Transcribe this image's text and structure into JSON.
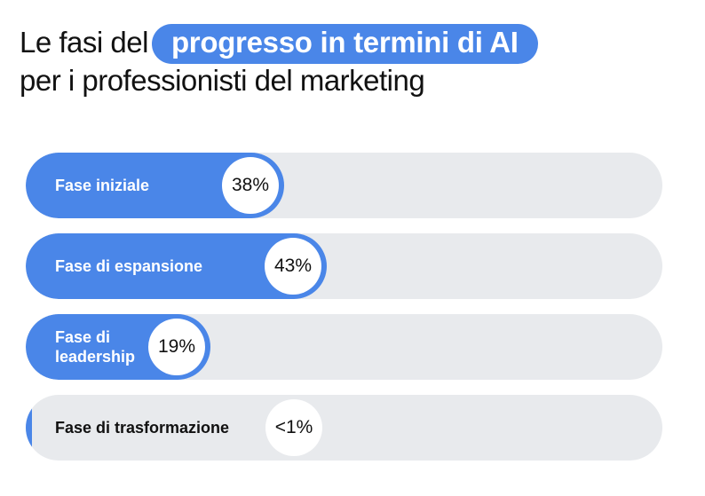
{
  "title": {
    "prefix": "Le fasi del",
    "highlight": "progresso in termini di AI",
    "line2": "per i professionisti del marketing"
  },
  "colors": {
    "accent": "#4a86e8",
    "track": "#e8eaed"
  },
  "chart_data": {
    "type": "bar",
    "orientation": "horizontal",
    "categories": [
      "Fase iniziale",
      "Fase di espansione",
      "Fase di leadership",
      "Fase di trasformazione"
    ],
    "labels": [
      "Fase iniziale",
      "Fase di espansione",
      "Fase di\nleadership",
      "Fase di trasformazione"
    ],
    "values": [
      38,
      43,
      19,
      1
    ],
    "value_labels": [
      "38%",
      "43%",
      "19%",
      "<1%"
    ],
    "xlim": [
      0,
      100
    ]
  }
}
